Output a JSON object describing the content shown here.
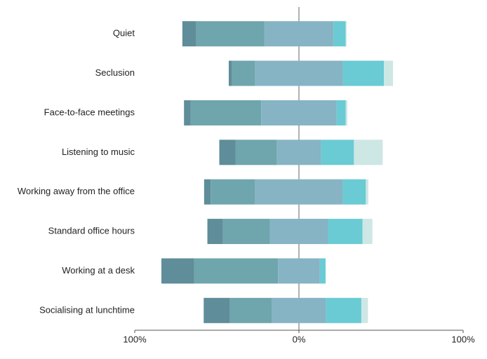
{
  "chart_data": {
    "type": "diverging-stacked-bar",
    "categories": [
      "Quiet",
      "Seclusion",
      "Face-to-face meetings",
      "Listening to music",
      "Working away from the office",
      "Standard office hours",
      "Working at a desk",
      "Socialising at lunchtime"
    ],
    "series": [
      {
        "color": "#5f8d9a",
        "values": [
          8.5,
          2,
          4,
          10,
          4,
          9.5,
          20,
          16
        ]
      },
      {
        "color": "#6fa5ad",
        "values": [
          41.5,
          14,
          43,
          25,
          27,
          28.5,
          51,
          25.5
        ]
      },
      {
        "color": "#86b4c4",
        "values": [
          42,
          53.5,
          46,
          27,
          53.5,
          35.5,
          25.5,
          33
        ]
      },
      {
        "color": "#6acbd4",
        "values": [
          7.5,
          25,
          5.5,
          20,
          14,
          21,
          3.5,
          21.5
        ]
      },
      {
        "color": "#cde7e4",
        "values": [
          0.5,
          5.5,
          1,
          17.5,
          1.5,
          6,
          0,
          4
        ]
      }
    ],
    "xlim": [
      -100,
      100
    ],
    "xticks": [
      {
        "value": -100,
        "label": "100%"
      },
      {
        "value": 0,
        "label": "0%"
      },
      {
        "value": 100,
        "label": "100%"
      }
    ]
  }
}
